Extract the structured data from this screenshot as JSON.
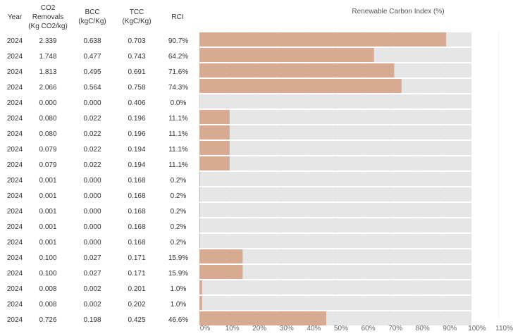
{
  "table": {
    "headers": {
      "year": "Year",
      "co2": [
        "CO2",
        "Removals",
        "(Kg CO2/kg)"
      ],
      "bcc": [
        "BCC",
        "(kgC/Kg)"
      ],
      "tcc": [
        "TCC",
        "(KgC/Kg)"
      ],
      "rci": "RCI"
    },
    "rows": [
      {
        "year": "2024",
        "co2": "2.339",
        "bcc": "0.638",
        "tcc": "0.703",
        "rci": "90.7%"
      },
      {
        "year": "2024",
        "co2": "1.748",
        "bcc": "0.477",
        "tcc": "0.743",
        "rci": "64.2%"
      },
      {
        "year": "2024",
        "co2": "1.813",
        "bcc": "0.495",
        "tcc": "0.691",
        "rci": "71.6%"
      },
      {
        "year": "2024",
        "co2": "2.066",
        "bcc": "0.564",
        "tcc": "0.758",
        "rci": "74.3%"
      },
      {
        "year": "2024",
        "co2": "0.000",
        "bcc": "0.000",
        "tcc": "0.406",
        "rci": "0.0%"
      },
      {
        "year": "2024",
        "co2": "0.080",
        "bcc": "0.022",
        "tcc": "0.196",
        "rci": "11.1%"
      },
      {
        "year": "2024",
        "co2": "0.080",
        "bcc": "0.022",
        "tcc": "0.196",
        "rci": "11.1%"
      },
      {
        "year": "2024",
        "co2": "0.079",
        "bcc": "0.022",
        "tcc": "0.194",
        "rci": "11.1%"
      },
      {
        "year": "2024",
        "co2": "0.079",
        "bcc": "0.022",
        "tcc": "0.194",
        "rci": "11.1%"
      },
      {
        "year": "2024",
        "co2": "0.001",
        "bcc": "0.000",
        "tcc": "0.168",
        "rci": "0.2%"
      },
      {
        "year": "2024",
        "co2": "0.001",
        "bcc": "0.000",
        "tcc": "0.168",
        "rci": "0.2%"
      },
      {
        "year": "2024",
        "co2": "0.001",
        "bcc": "0.000",
        "tcc": "0.168",
        "rci": "0.2%"
      },
      {
        "year": "2024",
        "co2": "0.001",
        "bcc": "0.000",
        "tcc": "0.168",
        "rci": "0.2%"
      },
      {
        "year": "2024",
        "co2": "0.001",
        "bcc": "0.000",
        "tcc": "0.168",
        "rci": "0.2%"
      },
      {
        "year": "2024",
        "co2": "0.100",
        "bcc": "0.027",
        "tcc": "0.171",
        "rci": "15.9%"
      },
      {
        "year": "2024",
        "co2": "0.100",
        "bcc": "0.027",
        "tcc": "0.171",
        "rci": "15.9%"
      },
      {
        "year": "2024",
        "co2": "0.008",
        "bcc": "0.002",
        "tcc": "0.201",
        "rci": "1.0%"
      },
      {
        "year": "2024",
        "co2": "0.008",
        "bcc": "0.002",
        "tcc": "0.202",
        "rci": "1.0%"
      },
      {
        "year": "2024",
        "co2": "0.726",
        "bcc": "0.198",
        "tcc": "0.425",
        "rci": "46.6%"
      }
    ]
  },
  "chart_data": {
    "type": "bar",
    "orientation": "horizontal",
    "title": "Renewable Carbon Index (%)",
    "xlabel": "Renewable Carbon Index (%)",
    "xlim": [
      0,
      110
    ],
    "x_ticks": [
      "0%",
      "10%",
      "20%",
      "30%",
      "40%",
      "50%",
      "60%",
      "70%",
      "80%",
      "90%",
      "100%",
      "110%"
    ],
    "values": [
      90.7,
      64.2,
      71.6,
      74.3,
      0.0,
      11.1,
      11.1,
      11.1,
      11.1,
      0.2,
      0.2,
      0.2,
      0.2,
      0.2,
      15.9,
      15.9,
      1.0,
      1.0,
      46.6
    ],
    "background_max": 100,
    "bar_color": "#d8aa92",
    "track_color": "#e6e6e6",
    "grid": true
  }
}
